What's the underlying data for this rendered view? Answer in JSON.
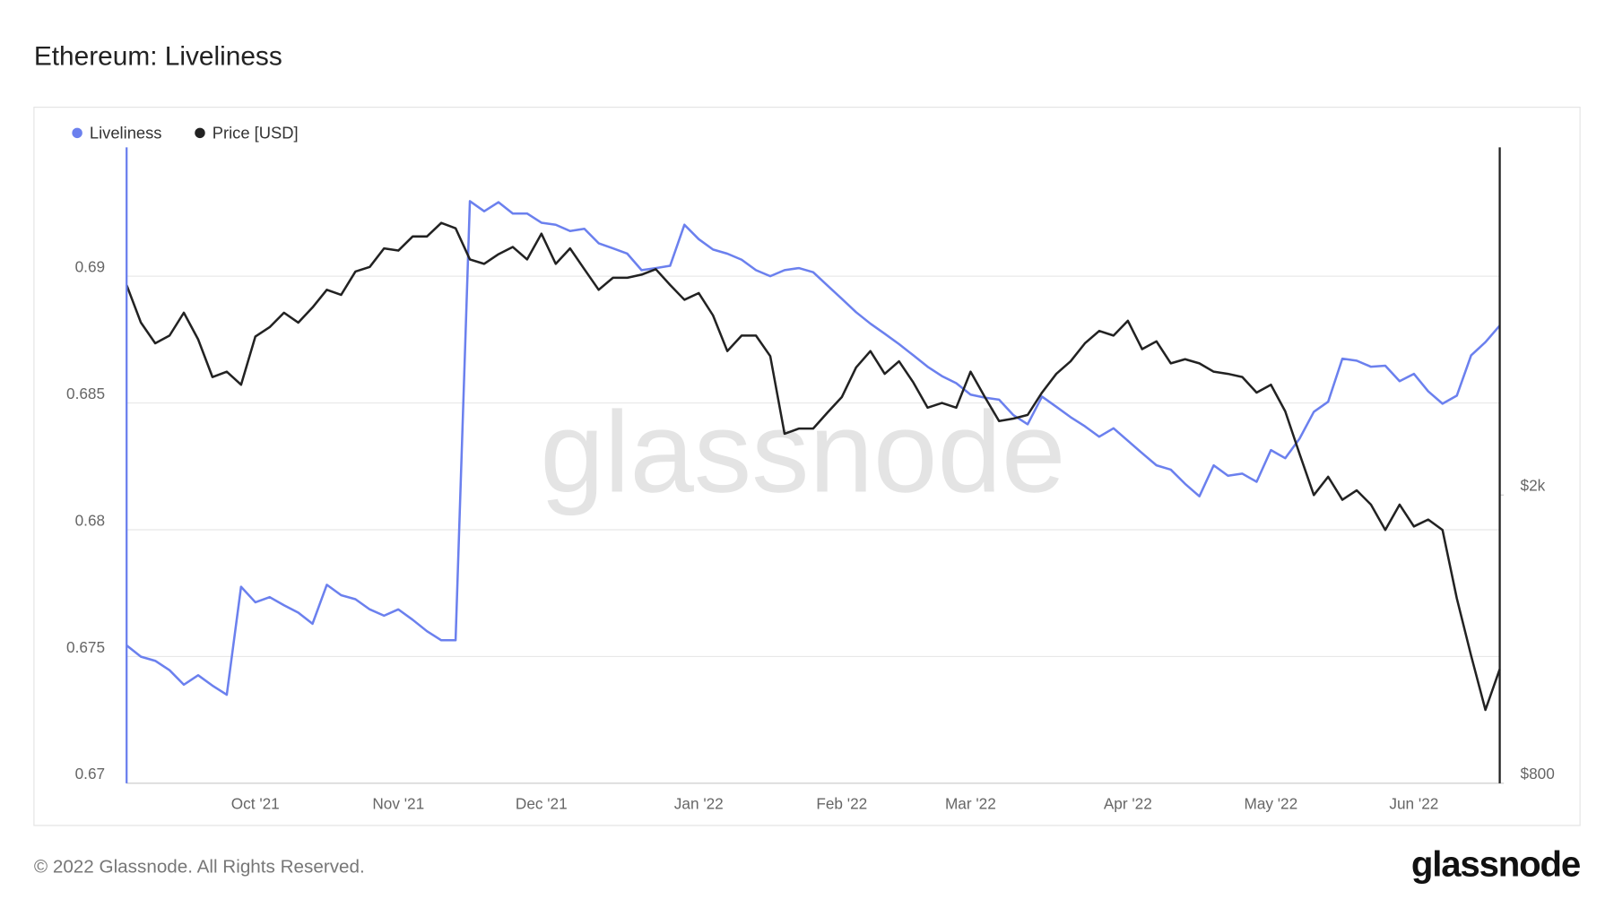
{
  "chart_data": {
    "type": "line",
    "title": "Ethereum: Liveliness",
    "watermark": "glassnode",
    "legend": "top-left",
    "grid": true,
    "categories": [
      null,
      null,
      null,
      null,
      null,
      null,
      null,
      null,
      null,
      "Oct '21",
      null,
      null,
      null,
      null,
      null,
      null,
      null,
      null,
      null,
      "Nov '21",
      null,
      null,
      null,
      null,
      null,
      null,
      null,
      null,
      null,
      "Dec '21",
      null,
      null,
      null,
      null,
      null,
      null,
      null,
      null,
      null,
      null,
      "Jan '22",
      null,
      null,
      null,
      null,
      null,
      null,
      null,
      null,
      null,
      "Feb '22",
      null,
      null,
      null,
      null,
      null,
      null,
      null,
      null,
      "Mar '22",
      null,
      null,
      null,
      null,
      null,
      null,
      null,
      null,
      null,
      null,
      "Apr '22",
      null,
      null,
      null,
      null,
      null,
      null,
      null,
      null,
      null,
      "May '22",
      null,
      null,
      null,
      null,
      null,
      null,
      null,
      null,
      null,
      "Jun '22",
      null,
      null,
      null,
      null,
      null,
      null
    ],
    "series": [
      {
        "name": "Liveliness",
        "color": "#6b80ee",
        "values": [
          0.67544,
          0.67499,
          0.67483,
          0.67446,
          0.67389,
          0.67426,
          0.67385,
          0.67349,
          0.67775,
          0.67714,
          0.67734,
          0.67702,
          0.67673,
          0.67629,
          0.67783,
          0.67742,
          0.67726,
          0.67686,
          0.67661,
          0.67686,
          0.67645,
          0.676,
          0.67564,
          0.67564,
          0.69296,
          0.69256,
          0.69292,
          0.69247,
          0.69247,
          0.69211,
          0.69203,
          0.69178,
          0.69187,
          0.6913,
          0.6911,
          0.69089,
          0.69024,
          0.69032,
          0.69041,
          0.69203,
          0.69146,
          0.69105,
          0.69089,
          0.69065,
          0.69024,
          0.69,
          0.69024,
          0.69032,
          0.69016,
          0.68963,
          0.68911,
          0.68858,
          0.68813,
          0.68773,
          0.68732,
          0.68688,
          0.68643,
          0.68606,
          0.68578,
          0.68533,
          0.68521,
          0.68513,
          0.68452,
          0.68416,
          0.68525,
          0.68485,
          0.68444,
          0.68408,
          0.68367,
          0.684,
          0.68351,
          0.68302,
          0.68254,
          0.68237,
          0.68181,
          0.68132,
          0.68254,
          0.68213,
          0.68221,
          0.68189,
          0.68314,
          0.68282,
          0.68359,
          0.68465,
          0.68505,
          0.68675,
          0.68667,
          0.68643,
          0.68647,
          0.68586,
          0.68615,
          0.68546,
          0.68497,
          0.68529,
          0.68688,
          0.6874,
          0.68805
        ]
      },
      {
        "name": "Price [USD]",
        "color": "#222222",
        "axis": "y2",
        "values": [
          3900,
          3460,
          3240,
          3320,
          3570,
          3280,
          2910,
          2960,
          2840,
          3310,
          3410,
          3570,
          3460,
          3630,
          3840,
          3780,
          4070,
          4130,
          4380,
          4350,
          4550,
          4550,
          4750,
          4670,
          4230,
          4170,
          4300,
          4400,
          4230,
          4590,
          4170,
          4380,
          4100,
          3840,
          3990,
          3990,
          4030,
          4100,
          3900,
          3720,
          3800,
          3540,
          3160,
          3320,
          3320,
          3110,
          2430,
          2470,
          2470,
          2600,
          2730,
          3000,
          3160,
          2940,
          3060,
          2860,
          2640,
          2680,
          2640,
          2960,
          2730,
          2530,
          2550,
          2580,
          2770,
          2940,
          3060,
          3240,
          3370,
          3320,
          3480,
          3180,
          3260,
          3040,
          3080,
          3040,
          2960,
          2940,
          2910,
          2770,
          2840,
          2610,
          2280,
          2000,
          2120,
          1970,
          2030,
          1940,
          1790,
          1940,
          1810,
          1850,
          1790,
          1440,
          1200,
          1010,
          1150
        ]
      }
    ],
    "ylim": [
      0.67,
      0.695
    ],
    "yticks": [
      0.67,
      0.675,
      0.68,
      0.685,
      0.69
    ],
    "y2scale": "log",
    "y2lim": [
      800,
      6000
    ],
    "y2ticks": [
      {
        "value": 800,
        "label": "$800"
      },
      {
        "value": 2000,
        "label": "$2k"
      }
    ]
  },
  "footer": {
    "copyright": "© 2022 Glassnode. All Rights Reserved.",
    "logo": "glassnode"
  }
}
